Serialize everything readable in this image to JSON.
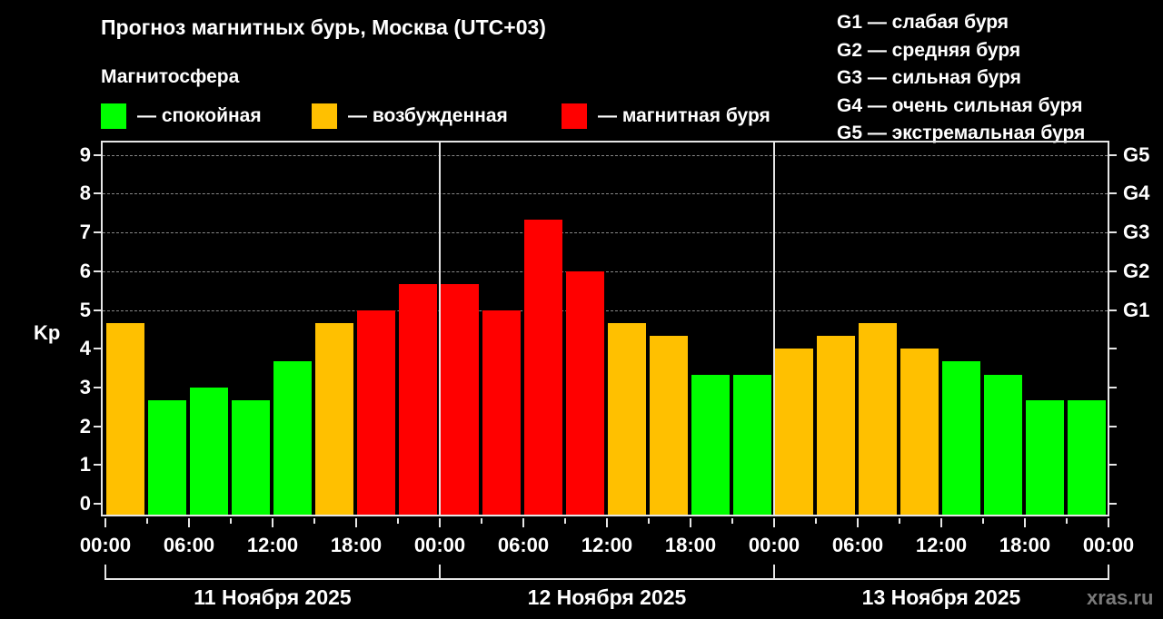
{
  "header": {
    "title": "Прогноз магнитных бурь, Москва (UTC+03)",
    "legend_title": "Магнитосфера",
    "legend": [
      {
        "label": "— спокойная",
        "color": "#00FF00"
      },
      {
        "label": "— возбужденная",
        "color": "#FFC000"
      },
      {
        "label": "— магнитная буря",
        "color": "#FF0000"
      }
    ],
    "g_scale": [
      "G1 — слабая буря",
      "G2 — средняя буря",
      "G3 — сильная буря",
      "G4 — очень сильная буря",
      "G5 — экстремальная буря"
    ]
  },
  "axis": {
    "ylabel": "Kp",
    "yticks": [
      "0",
      "1",
      "2",
      "3",
      "4",
      "5",
      "6",
      "7",
      "8",
      "9"
    ],
    "right_ticks": [
      "G1",
      "G2",
      "G3",
      "G4",
      "G5"
    ],
    "xticks": [
      "00:00",
      "06:00",
      "12:00",
      "18:00",
      "00:00",
      "06:00",
      "12:00",
      "18:00",
      "00:00",
      "06:00",
      "12:00",
      "18:00",
      "00:00"
    ],
    "dates": [
      "11 Ноября 2025",
      "12 Ноября 2025",
      "13 Ноября 2025"
    ]
  },
  "watermark": "xras.ru",
  "colors": {
    "quiet": "#00FF00",
    "active": "#FFC000",
    "storm": "#FF0000",
    "background": "#000000"
  },
  "chart_data": {
    "type": "bar",
    "title": "Прогноз магнитных бурь, Москва (UTC+03)",
    "xlabel": "",
    "ylabel": "Kp",
    "ylim": [
      0,
      9
    ],
    "grid": "horizontal dashed at Kp 5–9",
    "interval_hours": 3,
    "categories": [
      "11.11 00:00",
      "11.11 03:00",
      "11.11 06:00",
      "11.11 09:00",
      "11.11 12:00",
      "11.11 15:00",
      "11.11 18:00",
      "11.11 21:00",
      "12.11 00:00",
      "12.11 03:00",
      "12.11 06:00",
      "12.11 09:00",
      "12.11 12:00",
      "12.11 15:00",
      "12.11 18:00",
      "12.11 21:00",
      "13.11 00:00",
      "13.11 03:00",
      "13.11 06:00",
      "13.11 09:00",
      "13.11 12:00",
      "13.11 15:00",
      "13.11 18:00",
      "13.11 21:00"
    ],
    "values": [
      4.67,
      2.67,
      3.0,
      2.67,
      3.67,
      4.67,
      5.0,
      5.67,
      5.67,
      5.0,
      7.33,
      6.0,
      4.67,
      4.33,
      3.33,
      3.33,
      4.0,
      4.33,
      4.67,
      4.0,
      3.67,
      3.33,
      2.67,
      2.67
    ],
    "bar_colors": [
      "#FFC000",
      "#00FF00",
      "#00FF00",
      "#00FF00",
      "#00FF00",
      "#FFC000",
      "#FF0000",
      "#FF0000",
      "#FF0000",
      "#FF0000",
      "#FF0000",
      "#FF0000",
      "#FFC000",
      "#FFC000",
      "#00FF00",
      "#00FF00",
      "#FFC000",
      "#FFC000",
      "#FFC000",
      "#FFC000",
      "#00FF00",
      "#00FF00",
      "#00FF00",
      "#00FF00"
    ],
    "right_axis": {
      "G1": 5,
      "G2": 6,
      "G3": 7,
      "G4": 8,
      "G5": 9
    },
    "legend": [
      "спокойная",
      "возбужденная",
      "магнитная буря"
    ],
    "legend_position": "top"
  }
}
